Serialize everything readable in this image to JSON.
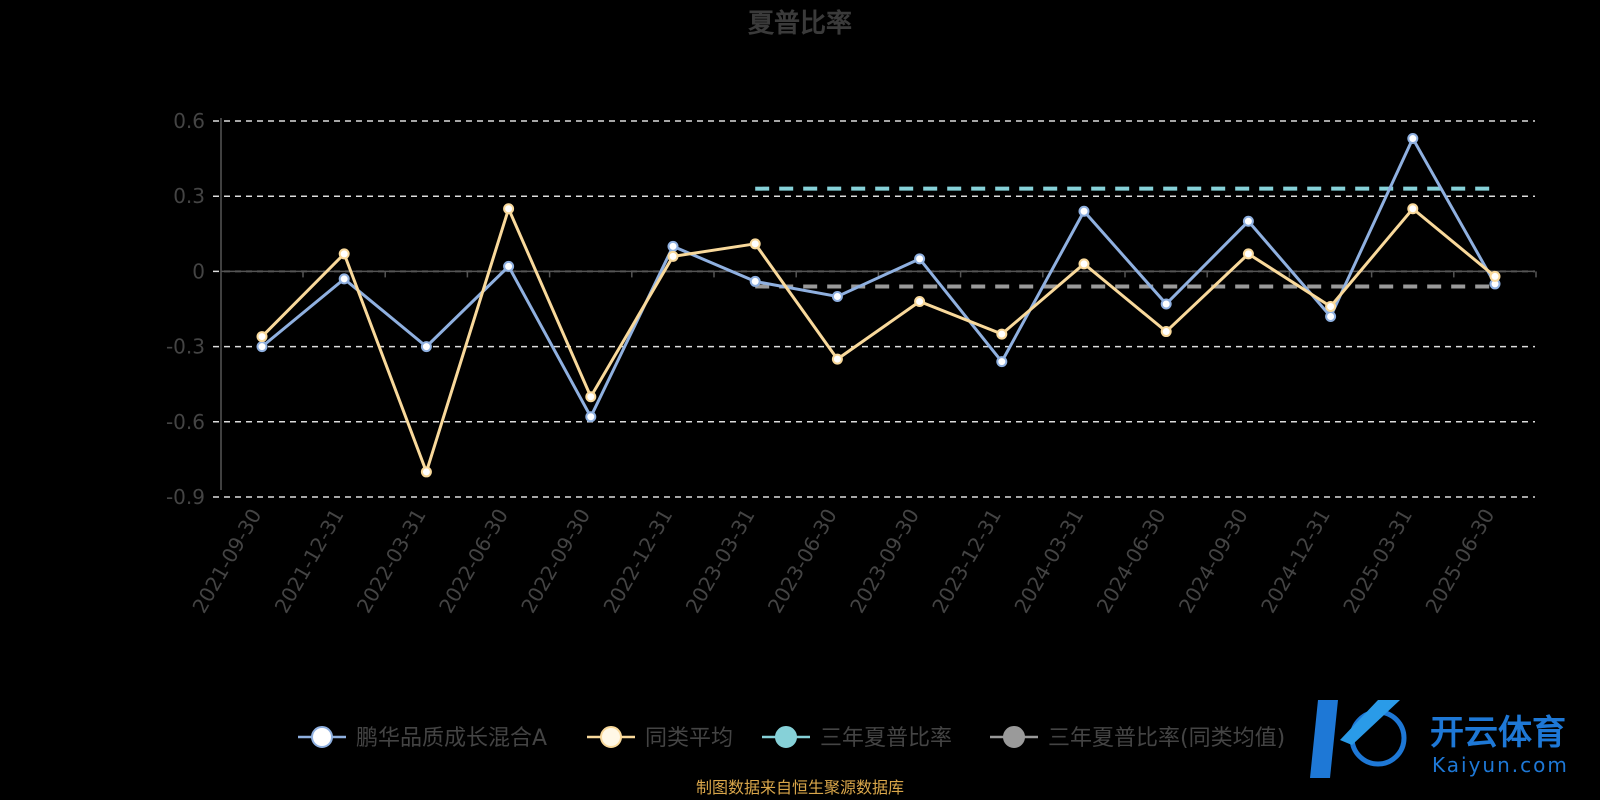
{
  "chart_data": {
    "type": "line",
    "title": "夏普比率",
    "categories": [
      "2021-09-30",
      "2021-12-31",
      "2022-03-31",
      "2022-06-30",
      "2022-09-30",
      "2022-12-31",
      "2023-03-31",
      "2023-06-30",
      "2023-09-30",
      "2023-12-31",
      "2024-03-31",
      "2024-06-30",
      "2024-09-30",
      "2024-12-31",
      "2025-03-31",
      "2025-06-30"
    ],
    "yticks": [
      "0.6",
      "0.3",
      "0",
      "-0.3",
      "-0.6",
      "-0.9"
    ],
    "ylim": [
      -0.9,
      0.6
    ],
    "grid": true,
    "legend_position": "bottom",
    "series": [
      {
        "name": "鹏华品质成长混合A",
        "color": "#8fb0e0",
        "values": [
          -0.3,
          -0.03,
          -0.3,
          0.02,
          -0.58,
          0.1,
          -0.04,
          -0.1,
          0.05,
          -0.36,
          0.24,
          -0.13,
          0.2,
          -0.18,
          0.53,
          -0.05
        ]
      },
      {
        "name": "同类平均",
        "color": "#f9d99b",
        "values": [
          -0.26,
          0.07,
          -0.8,
          0.25,
          -0.5,
          0.06,
          0.11,
          -0.35,
          -0.12,
          -0.25,
          0.03,
          -0.24,
          0.07,
          -0.14,
          0.25,
          -0.02
        ]
      },
      {
        "name": "三年夏普比率",
        "color": "#86d1d8",
        "from_index": 6,
        "to_index": 15,
        "value": 0.33,
        "dashed": true
      },
      {
        "name": "三年夏普比率(同类均值)",
        "color": "#9a9a9a",
        "from_index": 6,
        "to_index": 15,
        "value": -0.06,
        "dashed": true
      }
    ]
  },
  "legend": {
    "items": [
      "鹏华品质成长混合A",
      "同类平均",
      "三年夏普比率",
      "三年夏普比率(同类均值)"
    ]
  },
  "source": "制图数据来自恒生聚源数据库",
  "watermark": {
    "name": "开云体育",
    "domain": "Kaiyun.com"
  }
}
